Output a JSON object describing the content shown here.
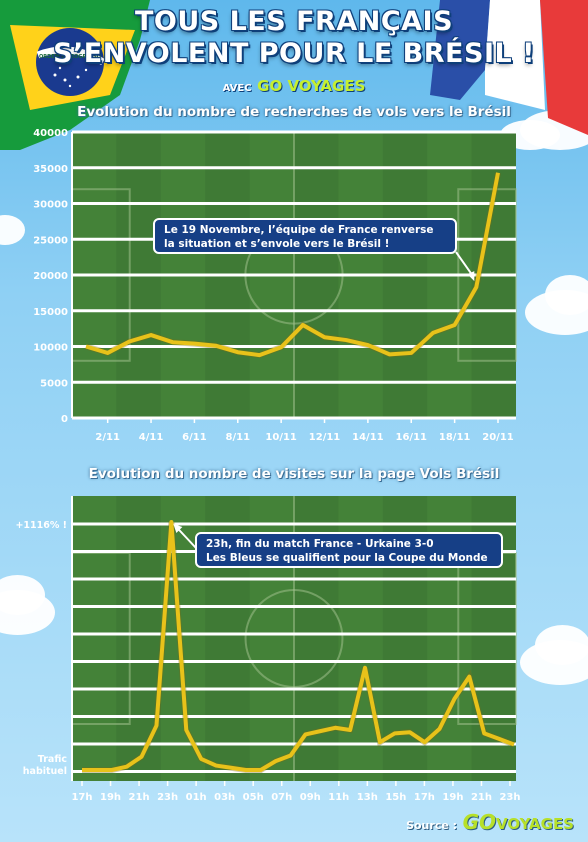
{
  "header": {
    "title_line1": "TOUS LES FRANÇAIS",
    "title_line2": "S’ENVOLENT POUR LE BRÉSIL !",
    "avec": "AVEC",
    "brand": "GO VOYAGES",
    "brazil_flag_motto": "ORDEM E PROGRESSO"
  },
  "chart_data": [
    {
      "type": "line",
      "title": "Evolution du nombre de recherches de vols vers le Brésil",
      "x": [
        1,
        2,
        3,
        4,
        5,
        6,
        7,
        8,
        9,
        10,
        11,
        12,
        13,
        14,
        15,
        16,
        17,
        18,
        19,
        20
      ],
      "xticks": [
        "2/11",
        "4/11",
        "6/11",
        "8/11",
        "10/11",
        "12/11",
        "14/11",
        "16/11",
        "18/11",
        "20/11"
      ],
      "xtick_positions": [
        2,
        4,
        6,
        8,
        10,
        12,
        14,
        16,
        18,
        20
      ],
      "yticks": [
        0,
        5000,
        10000,
        15000,
        20000,
        25000,
        30000,
        35000,
        40000
      ],
      "ylim": [
        0,
        40000
      ],
      "series": [
        {
          "values": [
            10000,
            9100,
            10700,
            11600,
            10600,
            10400,
            10100,
            9200,
            8800,
            9900,
            13000,
            11300,
            10900,
            10200,
            8900,
            9100,
            11900,
            13000,
            18300,
            34300
          ]
        }
      ],
      "annotation": {
        "text_line1": "Le 19 Novembre, l’équipe de France renverse",
        "text_line2": "la situation et s’envole vers le Brésil !",
        "points_to_x": 19
      },
      "color": "#e8c21a",
      "grid": true
    },
    {
      "type": "line",
      "title": "Evolution du nombre de visites sur la page Vols Brésil",
      "xticks": [
        "17h",
        "19h",
        "21h",
        "23h",
        "01h",
        "03h",
        "05h",
        "07h",
        "09h",
        "11h",
        "13h",
        "15h",
        "17h",
        "19h",
        "21h",
        "23h"
      ],
      "ylabel_top": "+1116% !",
      "ylabel_bottom_line1": "Trafic",
      "ylabel_bottom_line2": "habituel",
      "note": "values in percent of usual traffic (100 = trafic habituel, peak = +1116%)",
      "series": [
        {
          "values": [
            100,
            100,
            100,
            115,
            160,
            300,
            1216,
            280,
            150,
            120,
            110,
            100,
            100,
            140,
            165,
            260,
            275,
            290,
            280,
            560,
            225,
            265,
            270,
            225,
            285,
            420,
            520,
            265,
            240,
            215
          ]
        }
      ],
      "annotation": {
        "text_line1": "23h, fin du match France - Urkaine 3-0",
        "text_line2": "Les Bleus se qualifient pour la Coupe du Monde",
        "points_to": "23h"
      },
      "color": "#e8c21a",
      "grid": true
    }
  ],
  "footer": {
    "source_label": "Source :",
    "brand_go": "GO",
    "brand_voyages": "VOYAGES"
  }
}
